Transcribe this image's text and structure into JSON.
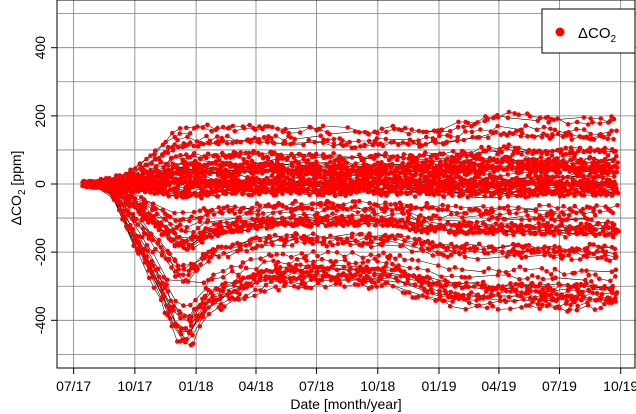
{
  "chart_data": {
    "type": "scatter",
    "title": "",
    "xlabel": "Date [month/year]",
    "ylabel_parts": {
      "prefix": "ΔCO",
      "subscript": "2",
      "suffix": " [ppm]"
    },
    "x_ticks": [
      "07/17",
      "10/17",
      "01/18",
      "04/18",
      "07/18",
      "10/18",
      "01/19",
      "04/19",
      "07/19",
      "10/19"
    ],
    "x_tick_dates": [
      "2017-07-01",
      "2017-10-01",
      "2018-01-01",
      "2018-04-01",
      "2018-07-01",
      "2018-10-01",
      "2019-01-01",
      "2019-04-01",
      "2019-07-01",
      "2019-10-01"
    ],
    "xlim": [
      "2017-06-06",
      "2019-10-24"
    ],
    "ylim": [
      -540,
      540
    ],
    "y_ticks": [
      -400,
      -200,
      0,
      200,
      400
    ],
    "y_grid": [
      -500,
      -400,
      -300,
      -200,
      -100,
      0,
      100,
      200,
      300,
      400,
      500
    ],
    "grid": true,
    "legend": {
      "position": "top-right",
      "marker_color": "#ff0000",
      "label_prefix": "ΔCO",
      "label_subscript": "2"
    },
    "colors": {
      "points": "#ff0000",
      "lines": "#000000",
      "grid": "#7f7f7f"
    },
    "series": [
      {
        "name": "ΔCO2",
        "x": [
          "2017-07-20",
          "2017-08-20",
          "2017-09-20",
          "2017-10-20",
          "2017-11-20",
          "2017-12-20",
          "2018-01-20",
          "2018-02-20",
          "2018-03-20",
          "2018-04-20",
          "2018-05-20",
          "2018-06-20",
          "2018-07-20",
          "2018-08-20",
          "2018-09-20",
          "2018-10-20",
          "2018-11-20",
          "2018-12-20",
          "2019-01-20",
          "2019-02-20",
          "2019-03-20",
          "2019-04-20",
          "2019-05-20",
          "2019-06-20",
          "2019-07-20",
          "2019-08-20",
          "2019-09-20"
        ],
        "y_min": [
          -20,
          -60,
          -330,
          -410,
          -480,
          -540,
          -420,
          -390,
          -370,
          -340,
          -335,
          -330,
          -330,
          -330,
          -335,
          -330,
          -360,
          -380,
          -395,
          -400,
          -405,
          -400,
          -400,
          -410,
          -410,
          -400,
          -410
        ],
        "y_max": [
          10,
          40,
          70,
          110,
          160,
          175,
          180,
          175,
          180,
          185,
          175,
          180,
          175,
          170,
          170,
          175,
          170,
          175,
          185,
          200,
          215,
          225,
          215,
          210,
          205,
          200,
          205
        ]
      }
    ]
  }
}
